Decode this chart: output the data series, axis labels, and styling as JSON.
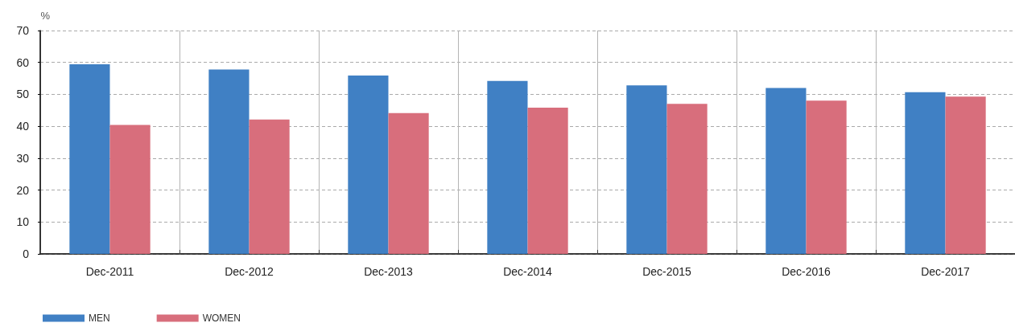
{
  "chart_data": {
    "type": "bar",
    "ylabel": "%",
    "categories": [
      "Dec-2011",
      "Dec-2012",
      "Dec-2013",
      "Dec-2014",
      "Dec-2015",
      "Dec-2016",
      "Dec-2017"
    ],
    "series": [
      {
        "name": "MEN",
        "color": "#4080c4",
        "values": [
          59.4,
          57.8,
          55.9,
          54.2,
          52.8,
          52.0,
          50.7
        ]
      },
      {
        "name": "WOMEN",
        "color": "#d86e7c",
        "values": [
          40.4,
          42.1,
          44.1,
          45.8,
          47.0,
          48.0,
          49.3
        ]
      }
    ],
    "ylim": [
      0,
      70
    ],
    "yticks": [
      0,
      10,
      20,
      30,
      40,
      50,
      60,
      70
    ],
    "grid": true,
    "legend": "bottom left"
  }
}
